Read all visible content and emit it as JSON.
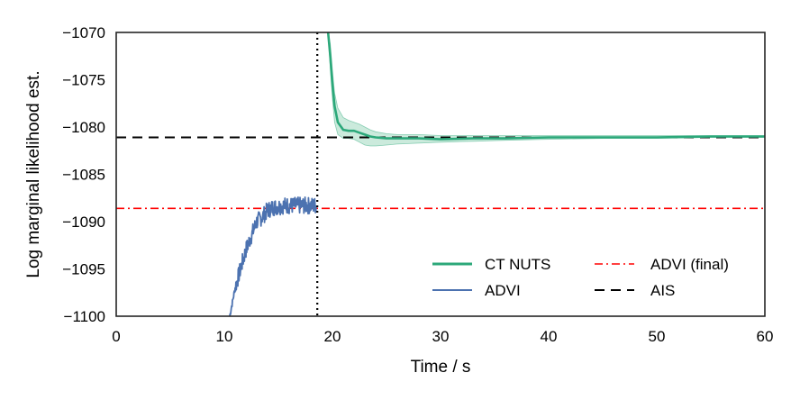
{
  "chart_data": {
    "type": "line",
    "xlabel": "Time / s",
    "ylabel": "Log marginal likelihood est.",
    "xlim": [
      0,
      60
    ],
    "ylim": [
      -1100,
      -1070
    ],
    "xticks": [
      0,
      10,
      20,
      30,
      40,
      50,
      60
    ],
    "yticks": [
      -1070,
      -1075,
      -1080,
      -1085,
      -1090,
      -1095,
      -1100
    ],
    "xtick_labels": [
      "0",
      "10",
      "20",
      "30",
      "40",
      "50",
      "60"
    ],
    "ytick_labels": [
      "−1070",
      "−1075",
      "−1080",
      "−1085",
      "−1090",
      "−1095",
      "−1100"
    ],
    "grid": false,
    "legend_position": "lower-right",
    "series": [
      {
        "name": "CT NUTS",
        "style": "solid",
        "color": "#2ca87a",
        "band_color": "#a8dcc4",
        "x": [
          19.6,
          19.8,
          20.0,
          20.2,
          20.5,
          21.0,
          21.5,
          22.0,
          22.5,
          23.0,
          23.5,
          24.0,
          25.0,
          26.0,
          28.0,
          30.0,
          33.0,
          36.0,
          40.0,
          45.0,
          50.0,
          55.0,
          60.0
        ],
        "y": [
          -1070.0,
          -1072.5,
          -1075.5,
          -1077.8,
          -1079.5,
          -1080.3,
          -1080.4,
          -1080.4,
          -1080.6,
          -1080.8,
          -1081.0,
          -1081.1,
          -1081.2,
          -1081.2,
          -1081.2,
          -1081.3,
          -1081.2,
          -1081.2,
          -1081.1,
          -1081.1,
          -1081.1,
          -1081.0,
          -1081.0
        ],
        "lower": [
          -1070.0,
          -1073.8,
          -1077.0,
          -1079.5,
          -1080.8,
          -1081.2,
          -1081.2,
          -1081.3,
          -1081.6,
          -1081.9,
          -1082.0,
          -1082.0,
          -1081.9,
          -1081.8,
          -1081.7,
          -1081.6,
          -1081.5,
          -1081.4,
          -1081.3,
          -1081.2,
          -1081.2,
          -1081.1,
          -1081.1
        ],
        "upper": [
          -1070.0,
          -1071.2,
          -1074.0,
          -1076.4,
          -1078.0,
          -1079.0,
          -1079.3,
          -1079.5,
          -1079.7,
          -1080.0,
          -1080.3,
          -1080.5,
          -1080.7,
          -1080.8,
          -1080.8,
          -1080.9,
          -1080.9,
          -1080.9,
          -1080.9,
          -1080.9,
          -1080.9,
          -1080.9,
          -1080.9
        ]
      },
      {
        "name": "ADVI",
        "style": "solid",
        "color": "#4c72b0",
        "x": [
          10.5,
          11.0,
          11.5,
          12.0,
          12.5,
          13.0,
          13.5,
          14.0,
          14.5,
          15.0,
          15.5,
          16.0,
          16.5,
          17.0,
          17.5,
          18.0,
          18.5
        ],
        "y": [
          -1100.0,
          -1097.0,
          -1095.0,
          -1093.0,
          -1091.5,
          -1090.0,
          -1089.5,
          -1088.8,
          -1088.5,
          -1088.4,
          -1088.3,
          -1088.3,
          -1088.3,
          -1088.3,
          -1088.3,
          -1088.3,
          -1088.3
        ]
      },
      {
        "name": "ADVI (final)",
        "style": "dashdot",
        "color": "#ff0000",
        "y_const": -1088.6
      },
      {
        "name": "AIS",
        "style": "dashed",
        "color": "#000000",
        "y_const": -1081.1
      }
    ],
    "vlines": [
      {
        "x": 18.6,
        "style": "dotted",
        "color": "#000000"
      }
    ]
  }
}
